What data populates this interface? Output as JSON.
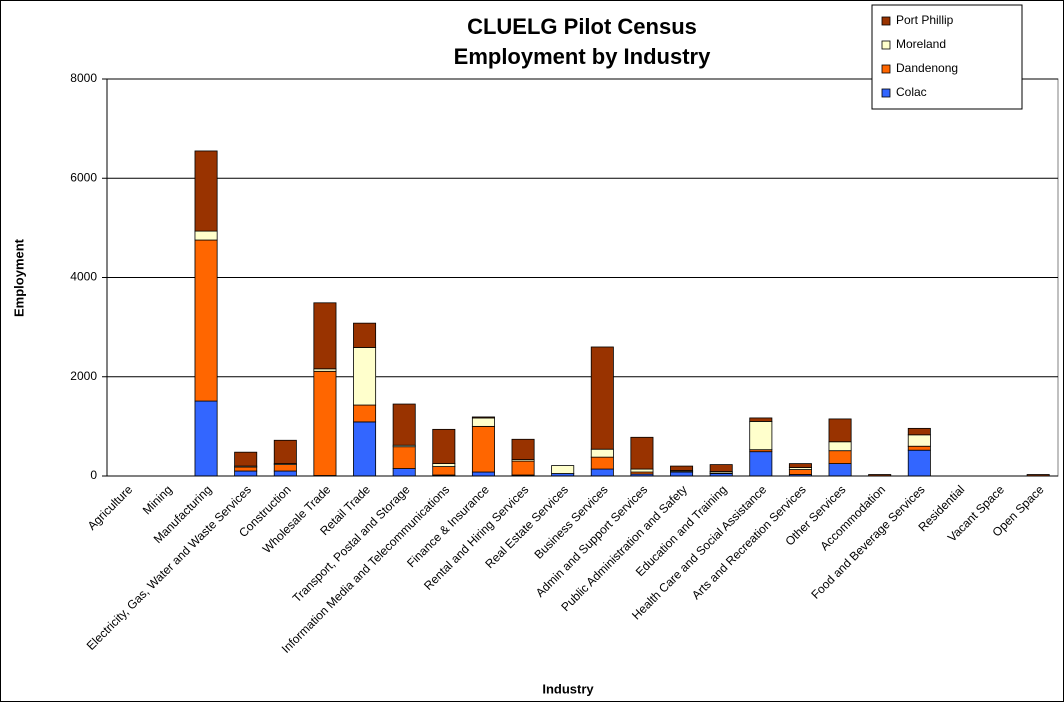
{
  "chart_data": {
    "type": "stacked_bar",
    "title": [
      "CLUELG Pilot Census",
      "Employment by Industry"
    ],
    "x_label": "Industry",
    "y_label": "Employment",
    "categories": [
      "Agriculture",
      "Mining",
      "Manufacturing",
      "Electricity, Gas, Water and Waste Services",
      "Construction",
      "Wholesale Trade",
      "Retail Trade",
      "Transport, Postal and Storage",
      "Information Media and Telecommunications",
      "Finance & Insurance",
      "Rental and Hiring Services",
      "Real Estate Services",
      "Business Services",
      "Admin and Support Services",
      "Public Administration and Safety",
      "Education and Training",
      "Health Care and Social Assistance",
      "Arts and Recreation Services",
      "Other Services",
      "Accommodation",
      "Food and Beverage Services",
      "Residential",
      "Vacant Space",
      "Open Space"
    ],
    "series": [
      {
        "name": "Colac",
        "color": "#3366ff",
        "values": [
          0,
          0,
          1510,
          100,
          100,
          10,
          1090,
          150,
          20,
          80,
          20,
          50,
          140,
          40,
          80,
          50,
          490,
          30,
          250,
          0,
          520,
          0,
          0,
          0
        ]
      },
      {
        "name": "Dandenong",
        "color": "#ff6600",
        "values": [
          0,
          0,
          3245,
          80,
          130,
          2100,
          340,
          440,
          170,
          920,
          280,
          0,
          240,
          40,
          10,
          10,
          40,
          100,
          260,
          0,
          80,
          0,
          0,
          0
        ]
      },
      {
        "name": "Moreland",
        "color": "#ffffcc",
        "values": [
          0,
          0,
          180,
          20,
          20,
          50,
          1160,
          30,
          60,
          170,
          30,
          160,
          160,
          60,
          20,
          30,
          570,
          40,
          180,
          0,
          230,
          0,
          0,
          0
        ]
      },
      {
        "name": "Port Phillip",
        "color": "#993300",
        "values": [
          0,
          0,
          1615,
          280,
          470,
          1330,
          490,
          830,
          690,
          20,
          410,
          0,
          2060,
          640,
          90,
          140,
          70,
          80,
          460,
          30,
          130,
          0,
          0,
          30
        ]
      }
    ],
    "ylim": [
      0,
      8000
    ],
    "yticks": [
      0,
      2000,
      4000,
      6000,
      8000
    ],
    "grid": true,
    "legend": "top-right"
  }
}
